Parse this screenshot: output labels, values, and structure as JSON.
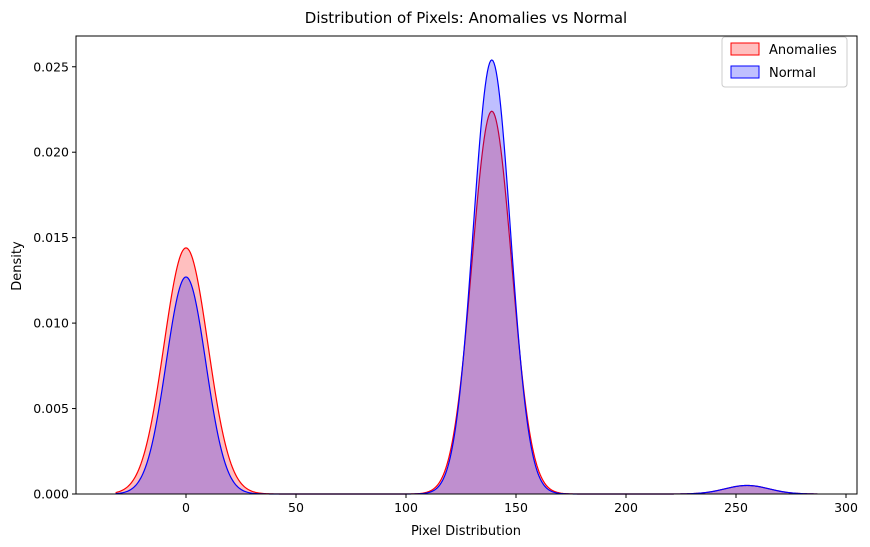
{
  "chart_data": {
    "type": "area",
    "subtype": "kde",
    "title": "Distribution of Pixels: Anomalies vs Normal",
    "xlabel": "Pixel Distribution",
    "ylabel": "Density",
    "xlim": [
      -50,
      305
    ],
    "ylim": [
      0,
      0.0268
    ],
    "x_ticks": [
      0,
      50,
      100,
      150,
      200,
      250,
      300
    ],
    "y_ticks": [
      0.0,
      0.005,
      0.01,
      0.015,
      0.02,
      0.025
    ],
    "y_tick_labels": [
      "0.000",
      "0.005",
      "0.010",
      "0.015",
      "0.020",
      "0.025"
    ],
    "grid": false,
    "legend_position": "top-right",
    "x_range": [
      -32,
      287
    ],
    "series": [
      {
        "name": "Anomalies",
        "color": "#ff0000",
        "fill": "#ff0000",
        "peaks": [
          {
            "x": 0,
            "density": 0.0144,
            "sigma": 10
          },
          {
            "x": 139,
            "density": 0.0224,
            "sigma": 9
          },
          {
            "x": 255,
            "density": 0.0005,
            "sigma": 10
          }
        ]
      },
      {
        "name": "Normal",
        "color": "#0000ff",
        "fill": "#0000ff",
        "peaks": [
          {
            "x": 0,
            "density": 0.0127,
            "sigma": 9
          },
          {
            "x": 139,
            "density": 0.0254,
            "sigma": 8.5
          },
          {
            "x": 255,
            "density": 0.0005,
            "sigma": 10
          }
        ]
      }
    ]
  }
}
